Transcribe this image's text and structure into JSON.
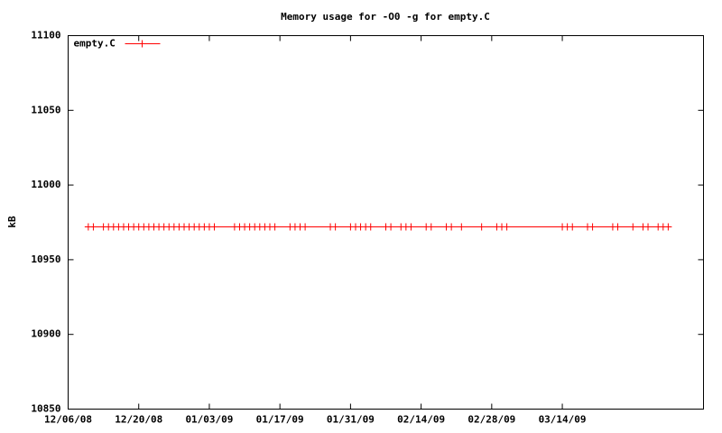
{
  "chart_data": {
    "type": "line",
    "title": "Memory usage for -O0 -g for empty.C",
    "ylabel": "kB",
    "legend": "top-left",
    "grid": false,
    "xlim": [
      "2008-12-06",
      "2009-04-11"
    ],
    "xticks": [
      {
        "value": "2008-12-06",
        "label": "12/06/08"
      },
      {
        "value": "2008-12-20",
        "label": "12/20/08"
      },
      {
        "value": "2009-01-03",
        "label": "01/03/09"
      },
      {
        "value": "2009-01-17",
        "label": "01/17/09"
      },
      {
        "value": "2009-01-31",
        "label": "01/31/09"
      },
      {
        "value": "2009-02-14",
        "label": "02/14/09"
      },
      {
        "value": "2009-02-28",
        "label": "02/28/09"
      },
      {
        "value": "2009-03-14",
        "label": "03/14/09"
      }
    ],
    "ylim": [
      10850,
      11100
    ],
    "yticks": [
      10850,
      10900,
      10950,
      11000,
      11050,
      11100
    ],
    "x": [
      "2008-12-10",
      "2008-12-11",
      "2008-12-13",
      "2008-12-14",
      "2008-12-15",
      "2008-12-16",
      "2008-12-17",
      "2008-12-18",
      "2008-12-19",
      "2008-12-20",
      "2008-12-21",
      "2008-12-22",
      "2008-12-23",
      "2008-12-24",
      "2008-12-25",
      "2008-12-26",
      "2008-12-27",
      "2008-12-28",
      "2008-12-29",
      "2008-12-30",
      "2008-12-31",
      "2009-01-01",
      "2009-01-02",
      "2009-01-03",
      "2009-01-04",
      "2009-01-08",
      "2009-01-09",
      "2009-01-10",
      "2009-01-11",
      "2009-01-12",
      "2009-01-13",
      "2009-01-14",
      "2009-01-15",
      "2009-01-16",
      "2009-01-19",
      "2009-01-20",
      "2009-01-21",
      "2009-01-22",
      "2009-01-27",
      "2009-01-28",
      "2009-01-31",
      "2009-02-01",
      "2009-02-02",
      "2009-02-03",
      "2009-02-04",
      "2009-02-07",
      "2009-02-08",
      "2009-02-10",
      "2009-02-11",
      "2009-02-12",
      "2009-02-15",
      "2009-02-16",
      "2009-02-19",
      "2009-02-20",
      "2009-02-22",
      "2009-02-26",
      "2009-03-01",
      "2009-03-02",
      "2009-03-03",
      "2009-03-14",
      "2009-03-15",
      "2009-03-16",
      "2009-03-19",
      "2009-03-20",
      "2009-03-24",
      "2009-03-25",
      "2009-03-28",
      "2009-03-30",
      "2009-03-31",
      "2009-04-02",
      "2009-04-03",
      "2009-04-04"
    ],
    "series": [
      {
        "name": "empty.C",
        "color": "#ff0000",
        "values": [
          10972,
          10972,
          10972,
          10972,
          10972,
          10972,
          10972,
          10972,
          10972,
          10972,
          10972,
          10972,
          10972,
          10972,
          10972,
          10972,
          10972,
          10972,
          10972,
          10972,
          10972,
          10972,
          10972,
          10972,
          10972,
          10972,
          10972,
          10972,
          10972,
          10972,
          10972,
          10972,
          10972,
          10972,
          10972,
          10972,
          10972,
          10972,
          10972,
          10972,
          10972,
          10972,
          10972,
          10972,
          10972,
          10972,
          10972,
          10972,
          10972,
          10972,
          10972,
          10972,
          10972,
          10972,
          10972,
          10972,
          10972,
          10972,
          10972,
          10972,
          10972,
          10972,
          10972,
          10972,
          10972,
          10972,
          10972,
          10972,
          10972,
          10972,
          10972,
          10972
        ]
      }
    ]
  }
}
